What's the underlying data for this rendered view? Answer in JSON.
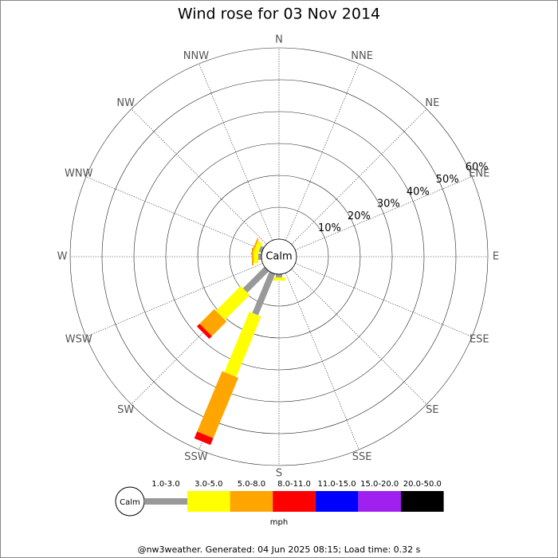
{
  "chart_data": {
    "type": "windrose",
    "title": "Wind rose for 03 Nov 2014",
    "directions": [
      "N",
      "NNE",
      "NE",
      "ENE",
      "E",
      "ESE",
      "SE",
      "SSE",
      "S",
      "SSW",
      "SW",
      "WSW",
      "W",
      "WNW",
      "NW",
      "NNW"
    ],
    "center_label": "Calm",
    "rlim": [
      0,
      60
    ],
    "rticks": [
      {
        "value": 10,
        "label": "10%"
      },
      {
        "value": 20,
        "label": "20%"
      },
      {
        "value": 30,
        "label": "30%"
      },
      {
        "value": 40,
        "label": "40%"
      },
      {
        "value": 50,
        "label": "50%"
      },
      {
        "value": 60,
        "label": "60%"
      }
    ],
    "series": [
      {
        "name": "1.0-3.0",
        "color": "#999999",
        "values": [
          0,
          0,
          0,
          0,
          0,
          0,
          0,
          0,
          1,
          14,
          9.5,
          0,
          1,
          1,
          0,
          0
        ]
      },
      {
        "name": "3.0-5.0",
        "color": "#ffff00",
        "values": [
          0,
          0,
          0,
          0,
          0,
          0,
          0,
          0,
          1,
          20.5,
          11,
          0,
          1.5,
          1.5,
          0,
          0
        ]
      },
      {
        "name": "5.0-8.0",
        "color": "#ffa500",
        "values": [
          0,
          0,
          0,
          0,
          0,
          0,
          0,
          0,
          0,
          20.5,
          6.5,
          0,
          0.5,
          0.5,
          0,
          0
        ]
      },
      {
        "name": "8.0-11.0",
        "color": "#ff0000",
        "values": [
          0,
          0,
          0,
          0,
          0,
          0,
          0,
          0,
          0,
          2.3,
          1.2,
          0,
          0,
          0,
          0,
          0
        ]
      },
      {
        "name": "11.0-15.0",
        "color": "#0000ff",
        "values": [
          0,
          0,
          0,
          0,
          0,
          0,
          0,
          0,
          0,
          0,
          0,
          0,
          0,
          0,
          0,
          0
        ]
      },
      {
        "name": "15.0-20.0",
        "color": "#a020f0",
        "values": [
          0,
          0,
          0,
          0,
          0,
          0,
          0,
          0,
          0,
          0,
          0,
          0,
          0,
          0,
          0,
          0
        ]
      },
      {
        "name": "20.0-50.0",
        "color": "#000000",
        "values": [
          0,
          0,
          0,
          0,
          0,
          0,
          0,
          0,
          0,
          0,
          0,
          0,
          0,
          0,
          0,
          0
        ]
      }
    ],
    "legend_calm": "Calm",
    "unit": "mph",
    "footer": "@nw3weather. Generated: 04 Jun 2025 08:15; Load time: 0.32 s"
  }
}
